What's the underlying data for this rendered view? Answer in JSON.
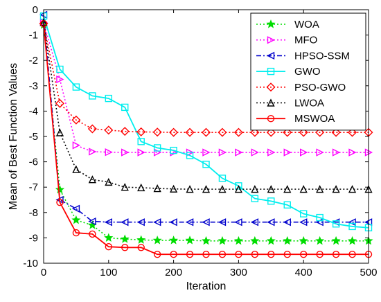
{
  "chart_data": {
    "type": "line",
    "title": "",
    "xlabel": "Iteration",
    "ylabel": "Mean of Best Function Values",
    "xlim": [
      0,
      500
    ],
    "ylim": [
      -10,
      0
    ],
    "xticks": [
      0,
      100,
      200,
      300,
      400,
      500
    ],
    "yticks": [
      0,
      -1,
      -2,
      -3,
      -4,
      -5,
      -6,
      -7,
      -8,
      -9,
      -10
    ],
    "grid": false,
    "legend_position": "top-right",
    "series": [
      {
        "name": "WOA",
        "color": "#00dd00",
        "line_style": "dotted",
        "marker": "star",
        "x": [
          0,
          25,
          50,
          75,
          100,
          125,
          150,
          175,
          200,
          225,
          250,
          275,
          300,
          325,
          350,
          375,
          400,
          425,
          450,
          475,
          500
        ],
        "y": [
          -0.6,
          -7.1,
          -8.3,
          -8.5,
          -9.0,
          -9.05,
          -9.08,
          -9.1,
          -9.1,
          -9.1,
          -9.12,
          -9.12,
          -9.12,
          -9.12,
          -9.12,
          -9.12,
          -9.12,
          -9.12,
          -9.12,
          -9.12,
          -9.12
        ]
      },
      {
        "name": "MFO",
        "color": "#ff00ff",
        "line_style": "dotted",
        "marker": "triangle-right",
        "x": [
          0,
          25,
          50,
          75,
          100,
          125,
          150,
          175,
          200,
          225,
          250,
          275,
          300,
          325,
          350,
          375,
          400,
          425,
          450,
          475,
          500
        ],
        "y": [
          -0.5,
          -2.75,
          -5.35,
          -5.6,
          -5.62,
          -5.63,
          -5.63,
          -5.63,
          -5.63,
          -5.63,
          -5.63,
          -5.63,
          -5.63,
          -5.63,
          -5.63,
          -5.63,
          -5.63,
          -5.63,
          -5.63,
          -5.63,
          -5.63
        ]
      },
      {
        "name": "HPSO-SSM",
        "color": "#0000cc",
        "line_style": "dashdot",
        "marker": "triangle-left",
        "x": [
          0,
          25,
          50,
          75,
          100,
          125,
          150,
          175,
          200,
          225,
          250,
          275,
          300,
          325,
          350,
          375,
          400,
          425,
          450,
          475,
          500
        ],
        "y": [
          -0.2,
          -7.5,
          -7.85,
          -8.35,
          -8.38,
          -8.38,
          -8.38,
          -8.38,
          -8.38,
          -8.38,
          -8.38,
          -8.38,
          -8.38,
          -8.38,
          -8.38,
          -8.38,
          -8.38,
          -8.38,
          -8.38,
          -8.38,
          -8.38
        ]
      },
      {
        "name": "GWO",
        "color": "#00eeee",
        "line_style": "solid",
        "marker": "square",
        "x": [
          0,
          25,
          50,
          75,
          100,
          125,
          150,
          175,
          200,
          225,
          250,
          275,
          300,
          325,
          350,
          375,
          400,
          425,
          450,
          475,
          500
        ],
        "y": [
          -0.25,
          -2.35,
          -3.05,
          -3.4,
          -3.5,
          -3.85,
          -5.2,
          -5.45,
          -5.55,
          -5.75,
          -6.1,
          -6.65,
          -6.95,
          -7.45,
          -7.55,
          -7.7,
          -8.05,
          -8.2,
          -8.45,
          -8.55,
          -8.6
        ]
      },
      {
        "name": "PSO-GWO",
        "color": "#ff0000",
        "line_style": "dotted",
        "marker": "diamond",
        "x": [
          0,
          25,
          50,
          75,
          100,
          125,
          150,
          175,
          200,
          225,
          250,
          275,
          300,
          325,
          350,
          375,
          400,
          425,
          450,
          475,
          500
        ],
        "y": [
          -0.55,
          -3.7,
          -4.35,
          -4.7,
          -4.75,
          -4.8,
          -4.82,
          -4.83,
          -4.84,
          -4.84,
          -4.84,
          -4.84,
          -4.84,
          -4.84,
          -4.84,
          -4.84,
          -4.84,
          -4.84,
          -4.84,
          -4.84,
          -4.84
        ]
      },
      {
        "name": "LWOA",
        "color": "#000000",
        "line_style": "dotted",
        "marker": "triangle-up",
        "x": [
          0,
          25,
          50,
          75,
          100,
          125,
          150,
          175,
          200,
          225,
          250,
          275,
          300,
          325,
          350,
          375,
          400,
          425,
          450,
          475,
          500
        ],
        "y": [
          -0.5,
          -4.85,
          -6.3,
          -6.7,
          -6.8,
          -7.0,
          -7.02,
          -7.05,
          -7.07,
          -7.08,
          -7.08,
          -7.08,
          -7.08,
          -7.08,
          -7.08,
          -7.08,
          -7.08,
          -7.08,
          -7.08,
          -7.08,
          -7.08
        ]
      },
      {
        "name": "MSWOA",
        "color": "#ff0000",
        "line_style": "solid",
        "marker": "circle",
        "x": [
          0,
          25,
          50,
          75,
          100,
          125,
          150,
          175,
          200,
          225,
          250,
          275,
          300,
          325,
          350,
          375,
          400,
          425,
          450,
          475,
          500
        ],
        "y": [
          -0.55,
          -7.6,
          -8.8,
          -8.85,
          -9.35,
          -9.38,
          -9.38,
          -9.65,
          -9.65,
          -9.65,
          -9.65,
          -9.65,
          -9.65,
          -9.65,
          -9.65,
          -9.65,
          -9.65,
          -9.65,
          -9.65,
          -9.65,
          -9.65
        ]
      }
    ]
  }
}
